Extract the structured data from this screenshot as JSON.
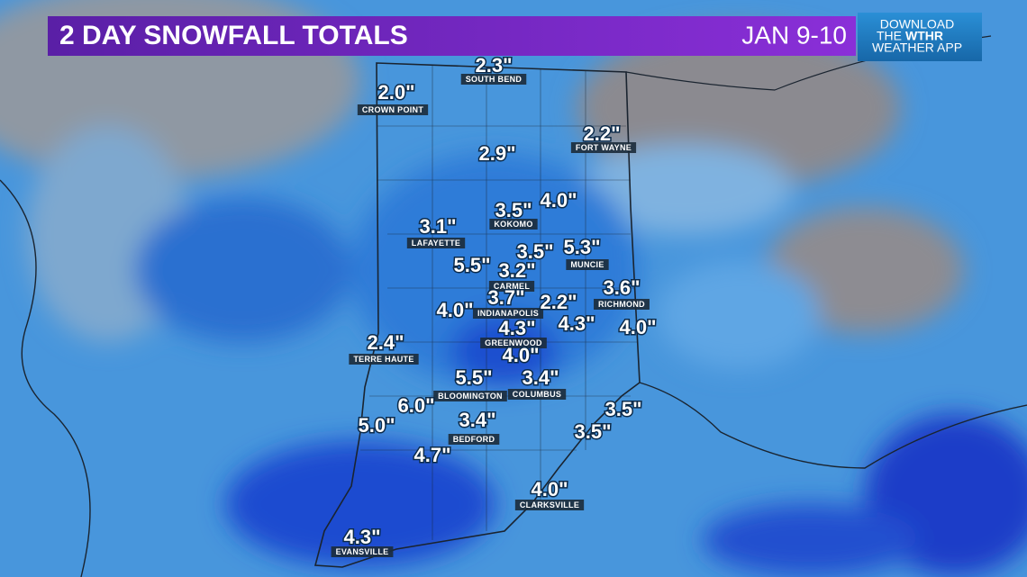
{
  "header": {
    "title": "2 DAY SNOWFALL TOTALS",
    "date": "JAN 9-10",
    "app_promo": {
      "line1": "DOWNLOAD",
      "line2": "THE",
      "brand": "WTHR",
      "line3": "WEATHER APP"
    }
  },
  "labels": [
    {
      "total": "2.3\"",
      "city": "SOUTH BEND"
    },
    {
      "total": "2.0\"",
      "city": "CROWN POINT"
    },
    {
      "total": "2.2\"",
      "city": "FORT WAYNE"
    },
    {
      "total": "2.9\""
    },
    {
      "total": "3.5\"",
      "city": "KOKOMO"
    },
    {
      "total": "4.0\""
    },
    {
      "total": "3.1\"",
      "city": "LAFAYETTE"
    },
    {
      "total": "3.5\""
    },
    {
      "total": "5.3\"",
      "city": "MUNCIE"
    },
    {
      "total": "5.5\""
    },
    {
      "total": "3.2\"",
      "city": "CARMEL"
    },
    {
      "total": "3.6\"",
      "city": "RICHMOND"
    },
    {
      "total": "3.7\"",
      "city": "INDIANAPOLIS"
    },
    {
      "total": "2.2\""
    },
    {
      "total": "4.0\""
    },
    {
      "total": "4.3\"",
      "city": "GREENWOOD"
    },
    {
      "total": "4.3\""
    },
    {
      "total": "4.0\""
    },
    {
      "total": "2.4\"",
      "city": "TERRE HAUTE"
    },
    {
      "total": "4.0\""
    },
    {
      "total": "5.5\"",
      "city": "BLOOMINGTON"
    },
    {
      "total": "3.4\"",
      "city": "COLUMBUS"
    },
    {
      "total": "6.0\""
    },
    {
      "total": "3.5\""
    },
    {
      "total": "5.0\""
    },
    {
      "total": "3.4\"",
      "city": "BEDFORD"
    },
    {
      "total": "3.5\""
    },
    {
      "total": "4.7\""
    },
    {
      "total": "4.0\"",
      "city": "CLARKSVILLE"
    },
    {
      "total": "4.3\"",
      "city": "EVANSVILLE"
    }
  ]
}
